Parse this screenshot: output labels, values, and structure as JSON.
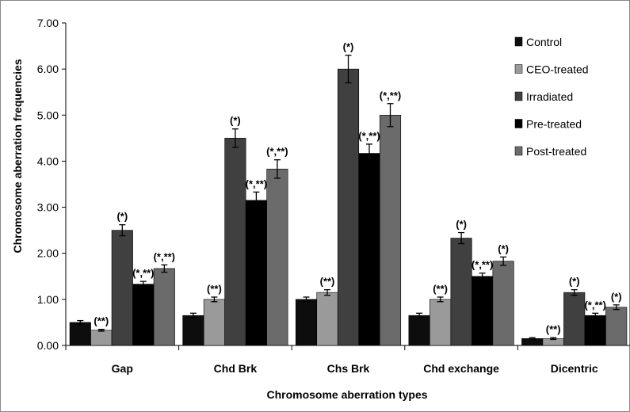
{
  "chart_data": {
    "type": "bar",
    "categories": [
      "Gap",
      "Chd Brk",
      "Chs Brk",
      "Chd exchange",
      "Dicentric"
    ],
    "series": [
      {
        "name": "Control",
        "color": "#0d0d0d",
        "values": [
          0.5,
          0.65,
          1.0,
          0.65,
          0.15
        ],
        "errors": [
          0.04,
          0.05,
          0.05,
          0.05,
          0.02
        ],
        "annotations": [
          "",
          "",
          "",
          "",
          ""
        ]
      },
      {
        "name": "CEO-treated",
        "color": "#9a9a9a",
        "values": [
          0.33,
          1.0,
          1.15,
          1.0,
          0.15
        ],
        "errors": [
          0.02,
          0.05,
          0.06,
          0.05,
          0.02
        ],
        "annotations": [
          "(**)",
          "(**)",
          "(**)",
          "(**)",
          "(**)"
        ]
      },
      {
        "name": "Irradiated",
        "color": "#404040",
        "values": [
          2.5,
          4.5,
          6.0,
          2.33,
          1.15
        ],
        "errors": [
          0.12,
          0.2,
          0.3,
          0.12,
          0.06
        ],
        "annotations": [
          "(*)",
          "(*)",
          "(*)",
          "(*)",
          "(*)"
        ]
      },
      {
        "name": "Pre-treated",
        "color": "#000000",
        "values": [
          1.33,
          3.15,
          4.17,
          1.5,
          0.65
        ],
        "errors": [
          0.06,
          0.18,
          0.2,
          0.07,
          0.05
        ],
        "annotations": [
          "(*,**)",
          "(*,**)",
          "(*,**)",
          "(*,**)",
          "(*,**)"
        ]
      },
      {
        "name": "Post-treated",
        "color": "#6b6b6b",
        "values": [
          1.67,
          3.83,
          5.0,
          1.83,
          0.83
        ],
        "errors": [
          0.08,
          0.2,
          0.25,
          0.09,
          0.05
        ],
        "annotations": [
          "(*,**)",
          "(*,**)",
          "(*,**)",
          "(*)",
          "(*)"
        ]
      }
    ],
    "yticks": [
      "0.00",
      "1.00",
      "2.00",
      "3.00",
      "4.00",
      "5.00",
      "6.00",
      "7.00"
    ],
    "ylim": [
      0,
      7
    ],
    "xlabel": "Chromosome aberration types",
    "ylabel": "Chromosome aberration frequencies",
    "grid": false,
    "legend_position": "top-right"
  }
}
